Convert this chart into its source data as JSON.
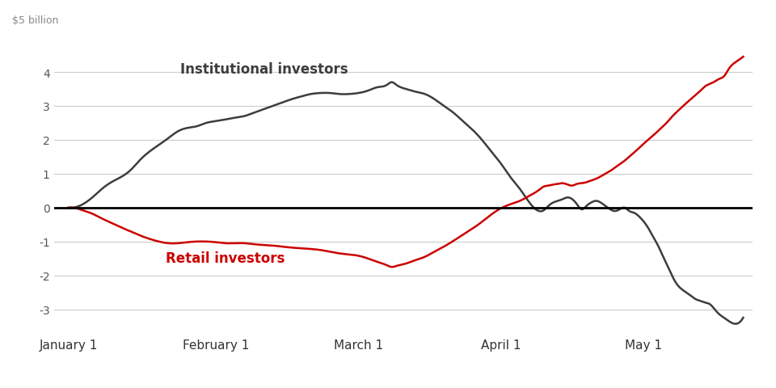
{
  "title_institutional": "Institutional investors",
  "title_retail": "Retail investors",
  "ylabel": "$5 billion",
  "ylim": [
    -3.6,
    5.0
  ],
  "yticks": [
    -3,
    -2,
    -1,
    0,
    1,
    2,
    3,
    4
  ],
  "institutional_color": "#3d3d3d",
  "retail_color": "#cc0000",
  "zero_line_color": "#000000",
  "background_color": "#ffffff",
  "grid_color": "#cccccc",
  "line_width": 1.8,
  "institutional_data": [
    [
      0,
      0.0
    ],
    [
      1,
      0.0
    ],
    [
      3,
      0.1
    ],
    [
      5,
      0.3
    ],
    [
      7,
      0.55
    ],
    [
      9,
      0.75
    ],
    [
      11,
      0.9
    ],
    [
      13,
      1.1
    ],
    [
      15,
      1.4
    ],
    [
      17,
      1.65
    ],
    [
      19,
      1.85
    ],
    [
      21,
      2.05
    ],
    [
      23,
      2.25
    ],
    [
      25,
      2.35
    ],
    [
      27,
      2.4
    ],
    [
      29,
      2.5
    ],
    [
      31,
      2.55
    ],
    [
      33,
      2.6
    ],
    [
      35,
      2.65
    ],
    [
      37,
      2.7
    ],
    [
      39,
      2.8
    ],
    [
      41,
      2.9
    ],
    [
      43,
      3.0
    ],
    [
      45,
      3.1
    ],
    [
      47,
      3.2
    ],
    [
      49,
      3.28
    ],
    [
      51,
      3.35
    ],
    [
      53,
      3.38
    ],
    [
      55,
      3.38
    ],
    [
      57,
      3.35
    ],
    [
      59,
      3.35
    ],
    [
      61,
      3.38
    ],
    [
      63,
      3.45
    ],
    [
      65,
      3.55
    ],
    [
      67,
      3.62
    ],
    [
      68,
      3.7
    ],
    [
      69,
      3.62
    ],
    [
      71,
      3.5
    ],
    [
      73,
      3.42
    ],
    [
      75,
      3.35
    ],
    [
      77,
      3.2
    ],
    [
      79,
      3.0
    ],
    [
      81,
      2.8
    ],
    [
      83,
      2.55
    ],
    [
      85,
      2.3
    ],
    [
      87,
      2.0
    ],
    [
      89,
      1.65
    ],
    [
      91,
      1.3
    ],
    [
      93,
      0.9
    ],
    [
      95,
      0.55
    ],
    [
      97,
      0.15
    ],
    [
      99,
      -0.1
    ],
    [
      100,
      -0.08
    ],
    [
      101,
      0.05
    ],
    [
      102,
      0.15
    ],
    [
      103,
      0.2
    ],
    [
      104,
      0.25
    ],
    [
      105,
      0.3
    ],
    [
      106,
      0.25
    ],
    [
      107,
      0.1
    ],
    [
      108,
      -0.05
    ],
    [
      109,
      0.05
    ],
    [
      110,
      0.15
    ],
    [
      111,
      0.2
    ],
    [
      112,
      0.15
    ],
    [
      113,
      0.05
    ],
    [
      114,
      -0.05
    ],
    [
      115,
      -0.1
    ],
    [
      116,
      -0.05
    ],
    [
      117,
      0.0
    ],
    [
      118,
      -0.1
    ],
    [
      119,
      -0.15
    ],
    [
      120,
      -0.25
    ],
    [
      121,
      -0.4
    ],
    [
      122,
      -0.6
    ],
    [
      123,
      -0.85
    ],
    [
      124,
      -1.1
    ],
    [
      125,
      -1.4
    ],
    [
      126,
      -1.7
    ],
    [
      127,
      -2.0
    ],
    [
      128,
      -2.25
    ],
    [
      129,
      -2.4
    ],
    [
      130,
      -2.5
    ],
    [
      131,
      -2.6
    ],
    [
      132,
      -2.7
    ],
    [
      133,
      -2.75
    ],
    [
      134,
      -2.8
    ],
    [
      135,
      -2.85
    ],
    [
      136,
      -3.0
    ],
    [
      137,
      -3.15
    ],
    [
      138,
      -3.25
    ],
    [
      139,
      -3.35
    ],
    [
      140,
      -3.42
    ]
  ],
  "retail_data": [
    [
      0,
      0.0
    ],
    [
      1,
      0.0
    ],
    [
      3,
      -0.08
    ],
    [
      5,
      -0.18
    ],
    [
      7,
      -0.32
    ],
    [
      9,
      -0.45
    ],
    [
      11,
      -0.58
    ],
    [
      13,
      -0.7
    ],
    [
      15,
      -0.82
    ],
    [
      17,
      -0.92
    ],
    [
      19,
      -1.0
    ],
    [
      21,
      -1.05
    ],
    [
      23,
      -1.05
    ],
    [
      25,
      -1.02
    ],
    [
      27,
      -1.0
    ],
    [
      29,
      -1.0
    ],
    [
      31,
      -1.02
    ],
    [
      33,
      -1.05
    ],
    [
      35,
      -1.05
    ],
    [
      37,
      -1.05
    ],
    [
      39,
      -1.08
    ],
    [
      41,
      -1.1
    ],
    [
      43,
      -1.12
    ],
    [
      45,
      -1.15
    ],
    [
      47,
      -1.18
    ],
    [
      49,
      -1.2
    ],
    [
      51,
      -1.22
    ],
    [
      53,
      -1.25
    ],
    [
      55,
      -1.3
    ],
    [
      57,
      -1.35
    ],
    [
      59,
      -1.38
    ],
    [
      61,
      -1.42
    ],
    [
      63,
      -1.5
    ],
    [
      65,
      -1.6
    ],
    [
      67,
      -1.7
    ],
    [
      68,
      -1.75
    ],
    [
      69,
      -1.72
    ],
    [
      71,
      -1.65
    ],
    [
      73,
      -1.55
    ],
    [
      75,
      -1.45
    ],
    [
      77,
      -1.3
    ],
    [
      79,
      -1.15
    ],
    [
      81,
      -0.98
    ],
    [
      83,
      -0.8
    ],
    [
      85,
      -0.62
    ],
    [
      87,
      -0.42
    ],
    [
      89,
      -0.2
    ],
    [
      91,
      -0.02
    ],
    [
      93,
      0.1
    ],
    [
      95,
      0.2
    ],
    [
      97,
      0.35
    ],
    [
      99,
      0.52
    ],
    [
      100,
      0.62
    ],
    [
      101,
      0.65
    ],
    [
      102,
      0.68
    ],
    [
      103,
      0.7
    ],
    [
      104,
      0.72
    ],
    [
      105,
      0.68
    ],
    [
      106,
      0.65
    ],
    [
      107,
      0.7
    ],
    [
      108,
      0.72
    ],
    [
      109,
      0.75
    ],
    [
      110,
      0.8
    ],
    [
      111,
      0.85
    ],
    [
      112,
      0.92
    ],
    [
      113,
      1.0
    ],
    [
      114,
      1.08
    ],
    [
      115,
      1.18
    ],
    [
      116,
      1.28
    ],
    [
      117,
      1.38
    ],
    [
      118,
      1.5
    ],
    [
      119,
      1.62
    ],
    [
      120,
      1.75
    ],
    [
      121,
      1.88
    ],
    [
      122,
      2.0
    ],
    [
      123,
      2.12
    ],
    [
      124,
      2.25
    ],
    [
      125,
      2.38
    ],
    [
      126,
      2.52
    ],
    [
      127,
      2.68
    ],
    [
      128,
      2.82
    ],
    [
      129,
      2.95
    ],
    [
      130,
      3.08
    ],
    [
      131,
      3.2
    ],
    [
      132,
      3.32
    ],
    [
      133,
      3.45
    ],
    [
      134,
      3.58
    ],
    [
      135,
      3.65
    ],
    [
      136,
      3.72
    ],
    [
      137,
      3.8
    ],
    [
      138,
      3.88
    ],
    [
      139,
      4.1
    ],
    [
      140,
      4.25
    ],
    [
      141,
      4.35
    ],
    [
      142,
      4.45
    ]
  ],
  "x_tick_positions": [
    0,
    31,
    61,
    91,
    121
  ],
  "x_tick_labels": [
    "January 1",
    "February 1",
    "March 1",
    "April 1",
    "May 1"
  ],
  "total_days": 142
}
